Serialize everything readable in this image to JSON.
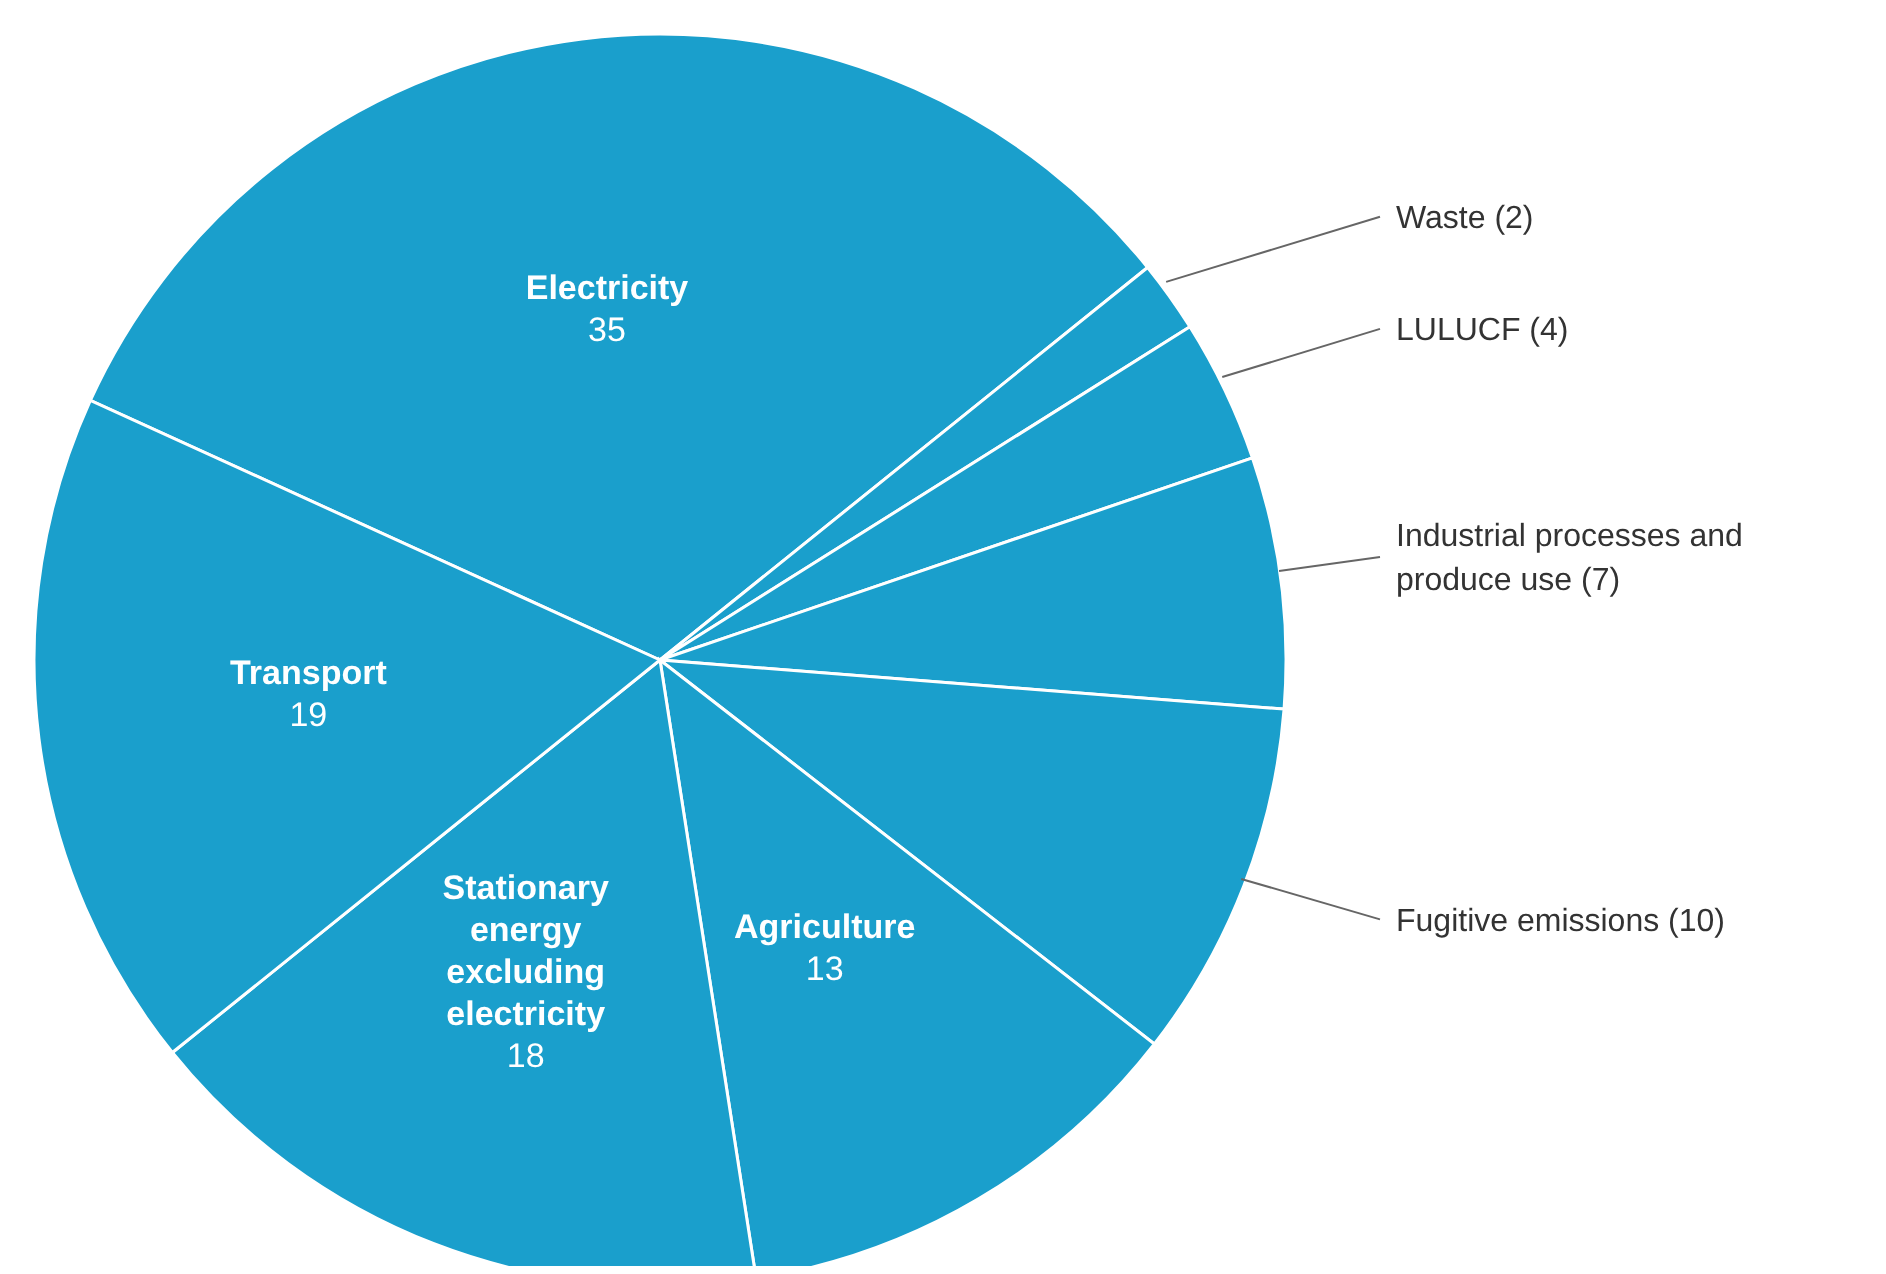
{
  "chart_data": {
    "type": "pie",
    "categories": [
      "Electricity",
      "Waste (2)",
      "LULUCF (4)",
      "Industrial processes and produce use (7)",
      "Fugitive emissions (10)",
      "Agriculture",
      "Stationary energy excluding electricity",
      "Transport"
    ],
    "values": [
      35,
      2,
      4,
      7,
      10,
      13,
      18,
      19
    ],
    "value_labels": [
      "35",
      null,
      null,
      null,
      null,
      "13",
      "18",
      "19"
    ],
    "colors": [
      "#1a9fcc",
      "#1a9fcc",
      "#1a9fcc",
      "#1a9fcc",
      "#1a9fcc",
      "#1a9fcc",
      "#1a9fcc",
      "#1a9fcc"
    ],
    "legend": false
  }
}
